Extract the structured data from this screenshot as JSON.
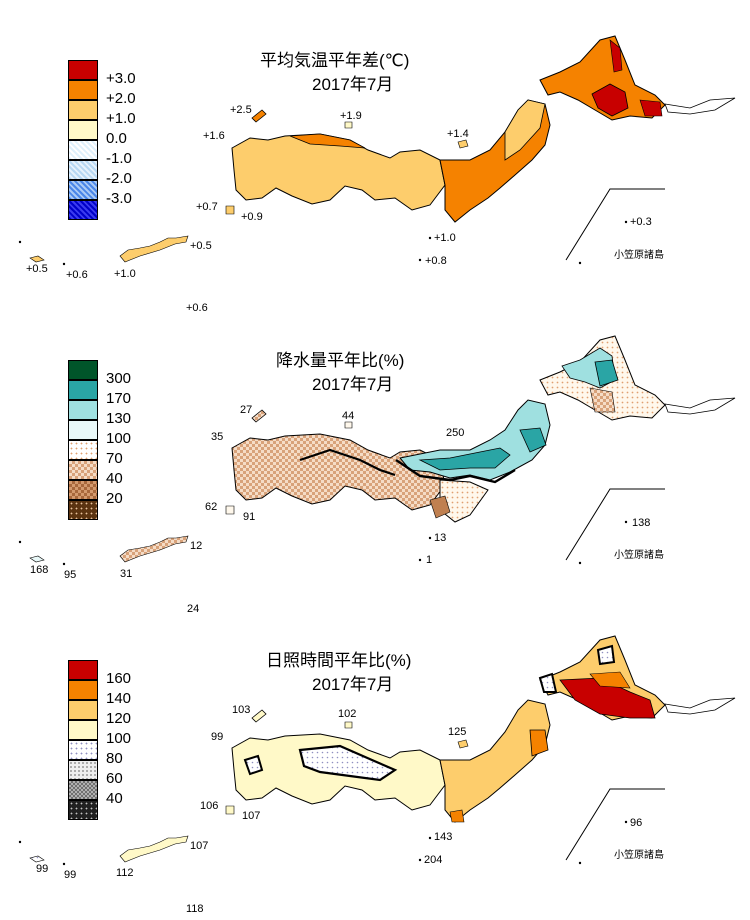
{
  "colors": {
    "temp": [
      "#c80000",
      "#f58200",
      "#fdcd6c",
      "#fff9c8",
      "#dff0fb",
      "#b7d8f3",
      "#4a86e8",
      "#0000c8"
    ],
    "precip": [
      "#00552a",
      "#2aa5a5",
      "#9fe0e0",
      "#e9f8f8",
      "#fff8ec",
      "#efcfb3",
      "#c08050",
      "#5b3310"
    ],
    "sun": [
      "#c80000",
      "#f58200",
      "#fdcd6c",
      "#fff9c8",
      "#ffffff",
      "#e0e0e0",
      "#a0a0a0",
      "#303030"
    ]
  },
  "panels": [
    {
      "id": "temperature",
      "title": "平均気温平年差(℃)",
      "subtitle": "2017年7月",
      "legend": [
        "+3.0",
        "+2.0",
        "+1.0",
        "0.0",
        "-1.0",
        "-2.0",
        "-3.0"
      ],
      "stations": [
        "+2.5",
        "+1.9",
        "+1.6",
        "+1.4",
        "+0.7",
        "+0.9",
        "+0.3",
        "+1.0",
        "+0.5",
        "+0.8",
        "+0.5",
        "+0.6",
        "+1.0",
        "+0.6"
      ],
      "ogasawara": "小笠原諸島"
    },
    {
      "id": "precipitation",
      "title": "降水量平年比(%)",
      "subtitle": "2017年7月",
      "legend": [
        "300",
        "170",
        "130",
        "100",
        "70",
        "40",
        "20"
      ],
      "stations": [
        "27",
        "44",
        "35",
        "250",
        "62",
        "91",
        "138",
        "13",
        "1",
        "12",
        "168",
        "95",
        "31",
        "24"
      ],
      "ogasawara": "小笠原諸島"
    },
    {
      "id": "sunshine",
      "title": "日照時間平年比(%)",
      "subtitle": "2017年7月",
      "legend": [
        "160",
        "140",
        "120",
        "100",
        "80",
        "60",
        "40"
      ],
      "stations": [
        "103",
        "102",
        "99",
        "125",
        "106",
        "107",
        "96",
        "143",
        "204",
        "107",
        "99",
        "99",
        "112",
        "118"
      ],
      "ogasawara": "小笠原諸島"
    }
  ]
}
